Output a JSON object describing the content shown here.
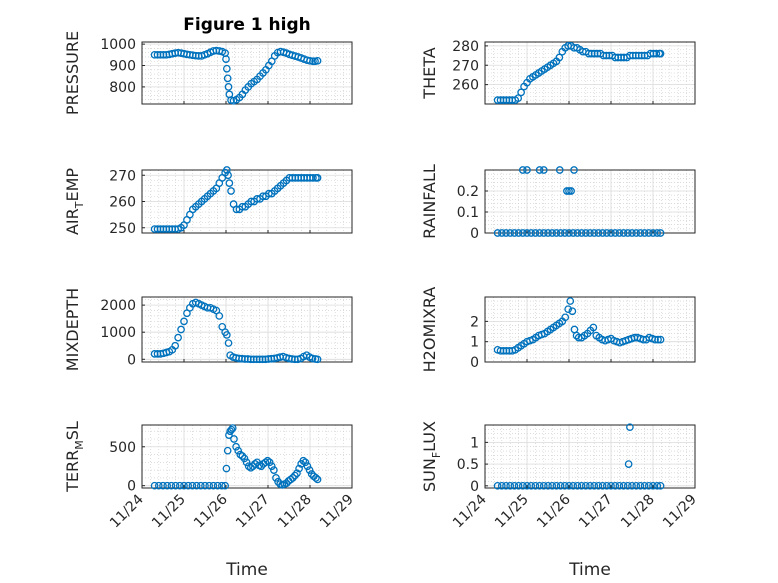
{
  "figure": {
    "title": "Figure 1 high"
  },
  "colors": {
    "marker": "#0072BD",
    "axis": "#262626",
    "grid": "#c8c8c8",
    "background": "#ffffff"
  },
  "chart_data": [
    {
      "type": "scatter",
      "ylabel": "PRESSURE",
      "xlabel": "",
      "title": "Figure 1 high",
      "xlim": [
        0,
        5
      ],
      "ylim": [
        720,
        1010
      ],
      "yticks": [
        800,
        900,
        1000
      ],
      "grid": true,
      "x": [
        0.3,
        0.37,
        0.44,
        0.51,
        0.58,
        0.65,
        0.72,
        0.79,
        0.86,
        0.93,
        1.0,
        1.07,
        1.14,
        1.21,
        1.28,
        1.35,
        1.42,
        1.49,
        1.56,
        1.63,
        1.7,
        1.77,
        1.84,
        1.91,
        1.98,
        2.0,
        2.02,
        2.04,
        2.06,
        2.08,
        2.12,
        2.18,
        2.25,
        2.32,
        2.39,
        2.46,
        2.53,
        2.6,
        2.67,
        2.74,
        2.81,
        2.88,
        2.95,
        3.02,
        3.09,
        3.16,
        3.23,
        3.3,
        3.37,
        3.44,
        3.51,
        3.58,
        3.65,
        3.72,
        3.79,
        3.86,
        3.93,
        4.0,
        4.07,
        4.12,
        4.18
      ],
      "y": [
        950,
        950,
        950,
        950,
        950,
        952,
        955,
        958,
        960,
        958,
        955,
        952,
        950,
        948,
        946,
        945,
        945,
        950,
        955,
        962,
        968,
        970,
        968,
        965,
        958,
        930,
        885,
        840,
        800,
        765,
        738,
        735,
        740,
        750,
        765,
        785,
        800,
        815,
        825,
        835,
        850,
        865,
        880,
        900,
        920,
        945,
        960,
        965,
        962,
        958,
        952,
        948,
        944,
        940,
        935,
        930,
        925,
        922,
        920,
        920,
        922
      ]
    },
    {
      "type": "scatter",
      "ylabel": "THETA",
      "xlabel": "",
      "xlim": [
        0,
        5
      ],
      "ylim": [
        250,
        282
      ],
      "yticks": [
        260,
        270,
        280
      ],
      "grid": true,
      "x": [
        0.3,
        0.37,
        0.44,
        0.51,
        0.58,
        0.65,
        0.72,
        0.79,
        0.86,
        0.93,
        1.0,
        1.07,
        1.14,
        1.21,
        1.28,
        1.35,
        1.42,
        1.49,
        1.56,
        1.63,
        1.7,
        1.77,
        1.84,
        1.91,
        1.98,
        2.05,
        2.12,
        2.19,
        2.26,
        2.33,
        2.4,
        2.47,
        2.54,
        2.61,
        2.68,
        2.75,
        2.82,
        2.89,
        2.96,
        3.03,
        3.1,
        3.17,
        3.24,
        3.31,
        3.38,
        3.45,
        3.52,
        3.59,
        3.66,
        3.73,
        3.8,
        3.87,
        3.94,
        4.01,
        4.08,
        4.15,
        4.18
      ],
      "y": [
        252,
        252,
        252,
        252,
        252,
        252,
        252,
        253,
        256,
        259,
        261,
        263,
        264,
        265,
        266,
        267,
        268,
        269,
        270,
        271,
        272,
        274,
        277,
        279,
        280,
        280,
        279,
        279,
        278,
        277,
        277,
        276,
        276,
        276,
        276,
        276,
        275,
        275,
        275,
        275,
        274,
        274,
        274,
        274,
        274,
        275,
        275,
        275,
        275,
        275,
        275,
        275,
        276,
        276,
        276,
        276,
        276
      ]
    },
    {
      "type": "scatter",
      "ylabel": "AIR_TEMP",
      "xlabel": "",
      "xlim": [
        0,
        5
      ],
      "ylim": [
        248,
        272
      ],
      "yticks": [
        250,
        260,
        270
      ],
      "grid": true,
      "x": [
        0.3,
        0.37,
        0.44,
        0.51,
        0.58,
        0.65,
        0.72,
        0.79,
        0.86,
        0.93,
        1.0,
        1.07,
        1.14,
        1.21,
        1.28,
        1.35,
        1.42,
        1.49,
        1.56,
        1.63,
        1.7,
        1.77,
        1.84,
        1.91,
        1.98,
        2.02,
        2.05,
        2.08,
        2.12,
        2.18,
        2.25,
        2.32,
        2.39,
        2.46,
        2.53,
        2.6,
        2.67,
        2.74,
        2.81,
        2.88,
        2.95,
        3.02,
        3.09,
        3.16,
        3.23,
        3.3,
        3.37,
        3.44,
        3.51,
        3.58,
        3.65,
        3.72,
        3.79,
        3.86,
        3.93,
        4.0,
        4.07,
        4.14,
        4.18
      ],
      "y": [
        249.5,
        249.5,
        249.5,
        249.5,
        249.5,
        249.5,
        249.5,
        249.5,
        249.5,
        250,
        251,
        253,
        255,
        257,
        258,
        259,
        260,
        261,
        262,
        263,
        264,
        265,
        267,
        269,
        271,
        272,
        270,
        267,
        264,
        259,
        257,
        257,
        258,
        258,
        259,
        260,
        260,
        261,
        261,
        262,
        262,
        263,
        263,
        264,
        265,
        266,
        267,
        268,
        269,
        269,
        269,
        269,
        269,
        269,
        269,
        269,
        269,
        269,
        269
      ]
    },
    {
      "type": "scatter",
      "ylabel": "RAINFALL",
      "xlabel": "",
      "xlim": [
        0,
        5
      ],
      "ylim": [
        0,
        0.3
      ],
      "yticks": [
        0,
        0.1,
        0.2
      ],
      "grid": true,
      "x": [
        0.3,
        0.4,
        0.5,
        0.6,
        0.7,
        0.8,
        0.9,
        1.0,
        1.1,
        1.2,
        1.3,
        1.4,
        1.5,
        1.6,
        1.7,
        1.8,
        1.9,
        2.0,
        2.1,
        2.2,
        2.3,
        2.4,
        2.5,
        2.6,
        2.7,
        2.8,
        2.9,
        3.0,
        3.1,
        3.2,
        3.3,
        3.4,
        3.5,
        3.6,
        3.7,
        3.8,
        3.9,
        4.0,
        4.1,
        4.18,
        0.9,
        1.0,
        1.3,
        1.4,
        1.78,
        1.95,
        2.0,
        2.05,
        2.12
      ],
      "y": [
        0,
        0,
        0,
        0,
        0,
        0,
        0,
        0,
        0,
        0,
        0,
        0,
        0,
        0,
        0,
        0,
        0,
        0,
        0,
        0,
        0,
        0,
        0,
        0,
        0,
        0,
        0,
        0,
        0,
        0,
        0,
        0,
        0,
        0,
        0,
        0,
        0,
        0,
        0,
        0,
        0.3,
        0.3,
        0.3,
        0.3,
        0.3,
        0.2,
        0.2,
        0.2,
        0.3
      ]
    },
    {
      "type": "scatter",
      "ylabel": "MIXDEPTH",
      "xlabel": "",
      "xlim": [
        0,
        5
      ],
      "ylim": [
        -100,
        2300
      ],
      "yticks": [
        0,
        1000,
        2000
      ],
      "grid": true,
      "x": [
        0.3,
        0.37,
        0.44,
        0.51,
        0.58,
        0.65,
        0.72,
        0.79,
        0.86,
        0.93,
        1.0,
        1.07,
        1.14,
        1.21,
        1.28,
        1.35,
        1.42,
        1.49,
        1.56,
        1.63,
        1.7,
        1.77,
        1.84,
        1.91,
        1.98,
        2.02,
        2.06,
        2.1,
        2.17,
        2.24,
        2.31,
        2.38,
        2.45,
        2.52,
        2.59,
        2.66,
        2.73,
        2.8,
        2.87,
        2.94,
        3.01,
        3.08,
        3.15,
        3.22,
        3.29,
        3.36,
        3.43,
        3.5,
        3.57,
        3.64,
        3.71,
        3.78,
        3.85,
        3.92,
        3.99,
        4.06,
        4.13,
        4.18
      ],
      "y": [
        200,
        200,
        200,
        220,
        250,
        280,
        350,
        500,
        800,
        1100,
        1400,
        1700,
        1900,
        2050,
        2100,
        2050,
        2000,
        1950,
        1900,
        1900,
        1850,
        1800,
        1600,
        1200,
        1000,
        900,
        600,
        150,
        80,
        50,
        30,
        20,
        10,
        10,
        0,
        0,
        0,
        0,
        0,
        0,
        10,
        20,
        30,
        50,
        80,
        100,
        60,
        30,
        10,
        0,
        0,
        30,
        100,
        150,
        80,
        30,
        10,
        0
      ]
    },
    {
      "type": "scatter",
      "ylabel": "H2OMIXRA",
      "xlabel": "",
      "xlim": [
        0,
        5
      ],
      "ylim": [
        0,
        3.2
      ],
      "yticks": [
        0,
        1,
        2
      ],
      "grid": true,
      "x": [
        0.3,
        0.37,
        0.44,
        0.51,
        0.58,
        0.65,
        0.72,
        0.79,
        0.86,
        0.93,
        1.0,
        1.07,
        1.14,
        1.21,
        1.28,
        1.35,
        1.42,
        1.49,
        1.56,
        1.63,
        1.7,
        1.77,
        1.84,
        1.91,
        1.98,
        2.03,
        2.08,
        2.13,
        2.18,
        2.23,
        2.3,
        2.37,
        2.44,
        2.51,
        2.58,
        2.65,
        2.72,
        2.79,
        2.86,
        2.93,
        3.0,
        3.07,
        3.14,
        3.21,
        3.28,
        3.35,
        3.42,
        3.49,
        3.56,
        3.63,
        3.7,
        3.77,
        3.84,
        3.91,
        3.98,
        4.05,
        4.12,
        4.18
      ],
      "y": [
        0.6,
        0.55,
        0.55,
        0.55,
        0.55,
        0.55,
        0.6,
        0.7,
        0.8,
        0.9,
        1.0,
        1.05,
        1.1,
        1.2,
        1.3,
        1.35,
        1.4,
        1.5,
        1.6,
        1.7,
        1.8,
        1.9,
        2.0,
        2.2,
        2.6,
        3.0,
        2.5,
        1.6,
        1.3,
        1.2,
        1.2,
        1.3,
        1.4,
        1.55,
        1.7,
        1.3,
        1.2,
        1.1,
        1.05,
        1.1,
        1.15,
        1.05,
        1.0,
        0.95,
        1.0,
        1.05,
        1.1,
        1.15,
        1.2,
        1.2,
        1.15,
        1.1,
        1.1,
        1.2,
        1.15,
        1.1,
        1.1,
        1.1
      ]
    },
    {
      "type": "scatter",
      "ylabel": "TERR_MSL",
      "xlabel": "Time",
      "xlim": [
        0,
        5
      ],
      "ylim": [
        -30,
        780
      ],
      "yticks": [
        0,
        500
      ],
      "grid": true,
      "xtick_labels": [
        "11/24",
        "11/25",
        "11/26",
        "11/27",
        "11/28",
        "11/29"
      ],
      "x": [
        0.3,
        0.4,
        0.5,
        0.6,
        0.7,
        0.8,
        0.9,
        1.0,
        1.1,
        1.2,
        1.3,
        1.4,
        1.5,
        1.6,
        1.7,
        1.8,
        1.9,
        1.98,
        2.01,
        2.04,
        2.07,
        2.1,
        2.13,
        2.16,
        2.19,
        2.24,
        2.29,
        2.34,
        2.39,
        2.44,
        2.49,
        2.54,
        2.59,
        2.64,
        2.69,
        2.74,
        2.79,
        2.84,
        2.89,
        2.94,
        2.99,
        3.04,
        3.09,
        3.14,
        3.19,
        3.24,
        3.29,
        3.34,
        3.39,
        3.44,
        3.49,
        3.54,
        3.59,
        3.64,
        3.69,
        3.74,
        3.79,
        3.84,
        3.89,
        3.94,
        3.99,
        4.04,
        4.09,
        4.14,
        4.18
      ],
      "y": [
        0,
        0,
        0,
        0,
        0,
        0,
        0,
        0,
        0,
        0,
        0,
        0,
        0,
        0,
        0,
        0,
        0,
        0,
        220,
        450,
        650,
        700,
        720,
        740,
        600,
        500,
        450,
        400,
        380,
        350,
        300,
        250,
        230,
        250,
        280,
        300,
        260,
        250,
        280,
        300,
        320,
        300,
        250,
        200,
        100,
        50,
        20,
        10,
        20,
        30,
        60,
        80,
        100,
        130,
        160,
        220,
        280,
        320,
        300,
        250,
        200,
        150,
        120,
        100,
        80
      ]
    },
    {
      "type": "scatter",
      "ylabel": "SUN_FLUX",
      "xlabel": "Time",
      "xlim": [
        0,
        5
      ],
      "ylim": [
        -0.05,
        1.4
      ],
      "yticks": [
        0,
        0.5,
        1
      ],
      "grid": true,
      "xtick_labels": [
        "11/24",
        "11/25",
        "11/26",
        "11/27",
        "11/28",
        "11/29"
      ],
      "x": [
        0.3,
        0.4,
        0.5,
        0.6,
        0.7,
        0.8,
        0.9,
        1.0,
        1.1,
        1.2,
        1.3,
        1.4,
        1.5,
        1.6,
        1.7,
        1.8,
        1.9,
        2.0,
        2.1,
        2.2,
        2.3,
        2.4,
        2.5,
        2.6,
        2.7,
        2.8,
        2.9,
        3.0,
        3.1,
        3.2,
        3.3,
        3.4,
        3.5,
        3.6,
        3.7,
        3.8,
        3.9,
        4.0,
        4.1,
        4.18,
        3.42,
        3.45
      ],
      "y": [
        0,
        0,
        0,
        0,
        0,
        0,
        0,
        0,
        0,
        0,
        0,
        0,
        0,
        0,
        0,
        0,
        0,
        0,
        0,
        0,
        0,
        0,
        0,
        0,
        0,
        0,
        0,
        0,
        0,
        0,
        0,
        0,
        0,
        0,
        0,
        0,
        0,
        0,
        0,
        0,
        0.5,
        1.35
      ]
    }
  ]
}
